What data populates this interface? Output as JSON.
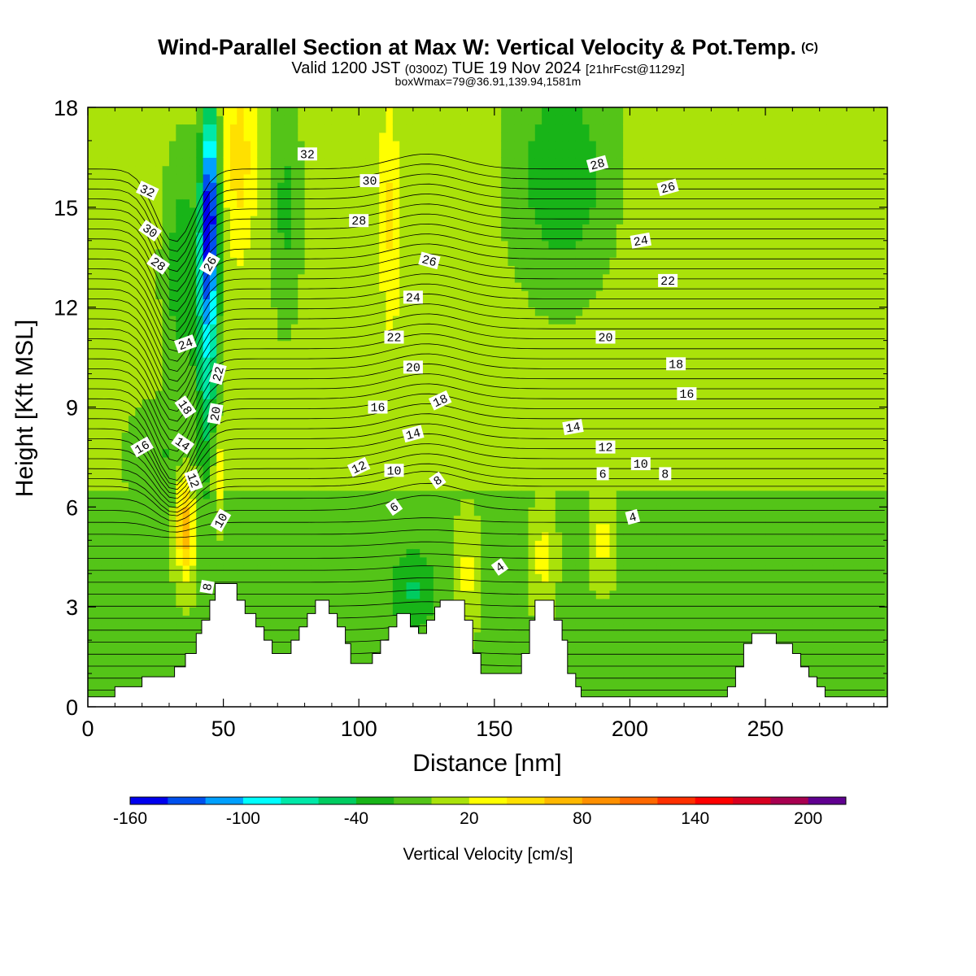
{
  "header": {
    "title": "Wind-Parallel Section at Max W: Vertical Velocity & Pot.Temp.",
    "copyright": "(C)",
    "valid_prefix": "Valid 1200 JST",
    "valid_utc": "(0300Z)",
    "valid_date": "TUE 19 Nov 2024",
    "forecast": "[21hrFcst@1129z]",
    "box_info": "boxWmax=79@36.91,139.94,1581m"
  },
  "chart_data": {
    "type": "heatmap",
    "xlabel": "Distance [nm]",
    "ylabel": "Height [Kft MSL]",
    "xlim": [
      0,
      295
    ],
    "ylim": [
      0,
      18
    ],
    "xticks": [
      0,
      50,
      100,
      150,
      200,
      250
    ],
    "yticks": [
      0,
      3,
      6,
      9,
      12,
      15,
      18
    ],
    "colorbar": {
      "label": "Vertical Velocity [cm/s]",
      "range": [
        -160,
        220
      ],
      "step": 20,
      "tick_labels": [
        "-160",
        "-100",
        "-40",
        "20",
        "80",
        "140",
        "200"
      ],
      "tick_values": [
        -160,
        -100,
        -40,
        20,
        80,
        140,
        200
      ],
      "colors": [
        "#0000ee",
        "#0050ee",
        "#00a0ff",
        "#00ffff",
        "#00e8a8",
        "#00cc60",
        "#18b418",
        "#54c418",
        "#aae20a",
        "#ffff00",
        "#ffe000",
        "#ffb800",
        "#ff9000",
        "#ff6800",
        "#ff3000",
        "#ff0000",
        "#d80020",
        "#a80050",
        "#600090"
      ]
    },
    "terrain_kft": [
      [
        0,
        0.3
      ],
      [
        10,
        0.3
      ],
      [
        10,
        0.6
      ],
      [
        20,
        0.6
      ],
      [
        20,
        0.9
      ],
      [
        32,
        0.9
      ],
      [
        32,
        1.2
      ],
      [
        36,
        1.2
      ],
      [
        36,
        1.6
      ],
      [
        40,
        1.6
      ],
      [
        40,
        2.2
      ],
      [
        42,
        2.2
      ],
      [
        42,
        2.6
      ],
      [
        45,
        2.6
      ],
      [
        45,
        3.2
      ],
      [
        47,
        3.2
      ],
      [
        47,
        3.7
      ],
      [
        55,
        3.7
      ],
      [
        55,
        3.2
      ],
      [
        58,
        3.2
      ],
      [
        58,
        2.8
      ],
      [
        62,
        2.8
      ],
      [
        62,
        2.4
      ],
      [
        65,
        2.4
      ],
      [
        65,
        2.0
      ],
      [
        68,
        2.0
      ],
      [
        68,
        1.6
      ],
      [
        75,
        1.6
      ],
      [
        75,
        2.0
      ],
      [
        78,
        2.0
      ],
      [
        78,
        2.4
      ],
      [
        81,
        2.4
      ],
      [
        81,
        2.8
      ],
      [
        84,
        2.8
      ],
      [
        84,
        3.2
      ],
      [
        89,
        3.2
      ],
      [
        89,
        2.8
      ],
      [
        92,
        2.8
      ],
      [
        92,
        2.4
      ],
      [
        95,
        2.4
      ],
      [
        95,
        1.9
      ],
      [
        97,
        1.9
      ],
      [
        97,
        1.3
      ],
      [
        105,
        1.3
      ],
      [
        105,
        1.6
      ],
      [
        108,
        1.6
      ],
      [
        108,
        2.0
      ],
      [
        111,
        2.0
      ],
      [
        111,
        2.4
      ],
      [
        114,
        2.4
      ],
      [
        114,
        2.8
      ],
      [
        119,
        2.8
      ],
      [
        119,
        2.4
      ],
      [
        122,
        2.4
      ],
      [
        122,
        2.2
      ],
      [
        125,
        2.2
      ],
      [
        125,
        2.6
      ],
      [
        128,
        2.6
      ],
      [
        128,
        3.0
      ],
      [
        130,
        3.0
      ],
      [
        130,
        3.2
      ],
      [
        139,
        3.2
      ],
      [
        139,
        2.6
      ],
      [
        142,
        2.6
      ],
      [
        142,
        1.6
      ],
      [
        145,
        1.6
      ],
      [
        145,
        1.0
      ],
      [
        160,
        1.0
      ],
      [
        160,
        1.6
      ],
      [
        163,
        1.6
      ],
      [
        163,
        2.6
      ],
      [
        165,
        2.6
      ],
      [
        165,
        3.2
      ],
      [
        172,
        3.2
      ],
      [
        172,
        2.6
      ],
      [
        175,
        2.6
      ],
      [
        175,
        2.0
      ],
      [
        177,
        2.0
      ],
      [
        177,
        1.0
      ],
      [
        180,
        1.0
      ],
      [
        180,
        0.6
      ],
      [
        182,
        0.6
      ],
      [
        182,
        0.3
      ],
      [
        236,
        0.3
      ],
      [
        236,
        0.6
      ],
      [
        239,
        0.6
      ],
      [
        239,
        1.2
      ],
      [
        242,
        1.2
      ],
      [
        242,
        1.9
      ],
      [
        245,
        1.9
      ],
      [
        245,
        2.2
      ],
      [
        254,
        2.2
      ],
      [
        254,
        1.9
      ],
      [
        260,
        1.9
      ],
      [
        260,
        1.6
      ],
      [
        263,
        1.6
      ],
      [
        263,
        1.2
      ],
      [
        266,
        1.2
      ],
      [
        266,
        0.9
      ],
      [
        269,
        0.9
      ],
      [
        269,
        0.6
      ],
      [
        272,
        0.6
      ],
      [
        272,
        0.3
      ],
      [
        295,
        0.3
      ]
    ],
    "contour_labels": [
      {
        "text": "32",
        "x": 81,
        "y": 16.6,
        "rot": 0
      },
      {
        "text": "30",
        "x": 104,
        "y": 15.8,
        "rot": 0
      },
      {
        "text": "28",
        "x": 100,
        "y": 14.6,
        "rot": 0
      },
      {
        "text": "26",
        "x": 126,
        "y": 13.4,
        "rot": 15
      },
      {
        "text": "24",
        "x": 120,
        "y": 12.3,
        "rot": 0
      },
      {
        "text": "22",
        "x": 113,
        "y": 11.1,
        "rot": 0
      },
      {
        "text": "20",
        "x": 120,
        "y": 10.2,
        "rot": 0
      },
      {
        "text": "18",
        "x": 130,
        "y": 9.2,
        "rot": -25
      },
      {
        "text": "16",
        "x": 107,
        "y": 9.0,
        "rot": 0
      },
      {
        "text": "14",
        "x": 120,
        "y": 8.2,
        "rot": -15
      },
      {
        "text": "12",
        "x": 100,
        "y": 7.2,
        "rot": -25
      },
      {
        "text": "10",
        "x": 113,
        "y": 7.1,
        "rot": 0
      },
      {
        "text": "8",
        "x": 129,
        "y": 6.8,
        "rot": -35
      },
      {
        "text": "6",
        "x": 113,
        "y": 6.0,
        "rot": -35
      },
      {
        "text": "4",
        "x": 152,
        "y": 4.2,
        "rot": -35
      },
      {
        "text": "32",
        "x": 22,
        "y": 15.5,
        "rot": 25
      },
      {
        "text": "30",
        "x": 23,
        "y": 14.3,
        "rot": 35
      },
      {
        "text": "28",
        "x": 26,
        "y": 13.3,
        "rot": 35
      },
      {
        "text": "26",
        "x": 45,
        "y": 13.3,
        "rot": -60
      },
      {
        "text": "24",
        "x": 36,
        "y": 10.9,
        "rot": -20
      },
      {
        "text": "22",
        "x": 48,
        "y": 10.0,
        "rot": -75
      },
      {
        "text": "20",
        "x": 47,
        "y": 8.8,
        "rot": -80
      },
      {
        "text": "18",
        "x": 36,
        "y": 9.0,
        "rot": 55
      },
      {
        "text": "16",
        "x": 20,
        "y": 7.8,
        "rot": -30
      },
      {
        "text": "14",
        "x": 35,
        "y": 7.9,
        "rot": 35
      },
      {
        "text": "12",
        "x": 39,
        "y": 6.8,
        "rot": 70
      },
      {
        "text": "10",
        "x": 49,
        "y": 5.6,
        "rot": -60
      },
      {
        "text": "8",
        "x": 44,
        "y": 3.6,
        "rot": -80
      },
      {
        "text": "28",
        "x": 188,
        "y": 16.3,
        "rot": -15
      },
      {
        "text": "26",
        "x": 214,
        "y": 15.6,
        "rot": -15
      },
      {
        "text": "24",
        "x": 204,
        "y": 14.0,
        "rot": -10
      },
      {
        "text": "22",
        "x": 214,
        "y": 12.8,
        "rot": 0
      },
      {
        "text": "20",
        "x": 191,
        "y": 11.1,
        "rot": 0
      },
      {
        "text": "18",
        "x": 217,
        "y": 10.3,
        "rot": 0
      },
      {
        "text": "16",
        "x": 221,
        "y": 9.4,
        "rot": 0
      },
      {
        "text": "14",
        "x": 179,
        "y": 8.4,
        "rot": -10
      },
      {
        "text": "12",
        "x": 191,
        "y": 7.8,
        "rot": 0
      },
      {
        "text": "10",
        "x": 204,
        "y": 7.3,
        "rot": 0
      },
      {
        "text": "8",
        "x": 213,
        "y": 7.0,
        "rot": 0
      },
      {
        "text": "6",
        "x": 190,
        "y": 7.0,
        "rot": 0
      },
      {
        "text": "4",
        "x": 201,
        "y": 5.7,
        "rot": -15
      }
    ]
  }
}
